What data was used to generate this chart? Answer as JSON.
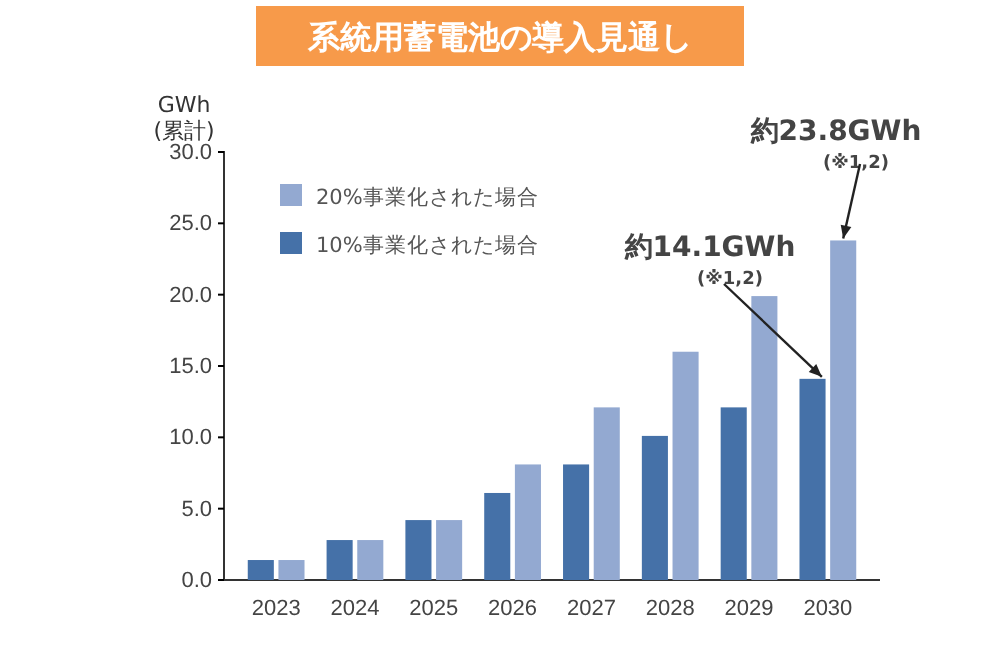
{
  "chart_data": {
    "type": "bar",
    "title": "系統用蓄電池の導入見通し",
    "ylabel": "GWh\n(累計)",
    "categories": [
      "2023",
      "2024",
      "2025",
      "2026",
      "2027",
      "2028",
      "2029",
      "2030"
    ],
    "series": [
      {
        "name": "10%事業化された場合",
        "color": "#4571a8",
        "values": [
          1.4,
          2.8,
          4.2,
          6.1,
          8.1,
          10.1,
          12.1,
          14.1
        ]
      },
      {
        "name": "20%事業化された場合",
        "color": "#93a9d1",
        "values": [
          1.4,
          2.8,
          4.2,
          8.1,
          12.1,
          16.0,
          19.9,
          23.8
        ]
      }
    ],
    "ylim": [
      0,
      30
    ],
    "yticks": [
      {
        "value": 0,
        "label": "0.0"
      },
      {
        "value": 5,
        "label": "5.0"
      },
      {
        "value": 10,
        "label": "10.0"
      },
      {
        "value": 15,
        "label": "15.0"
      },
      {
        "value": 20,
        "label": "20.0"
      },
      {
        "value": 25,
        "label": "25.0"
      },
      {
        "value": 30,
        "label": "30.0"
      }
    ],
    "grid": false,
    "legend": "top left",
    "annotations": [
      {
        "text": "約14.1GWh\n(※1,2)",
        "x": "2030",
        "y": 14.1
      },
      {
        "text": "約23.8GWh\n(※1,2)",
        "x": "2030",
        "y": 23.8
      }
    ]
  }
}
